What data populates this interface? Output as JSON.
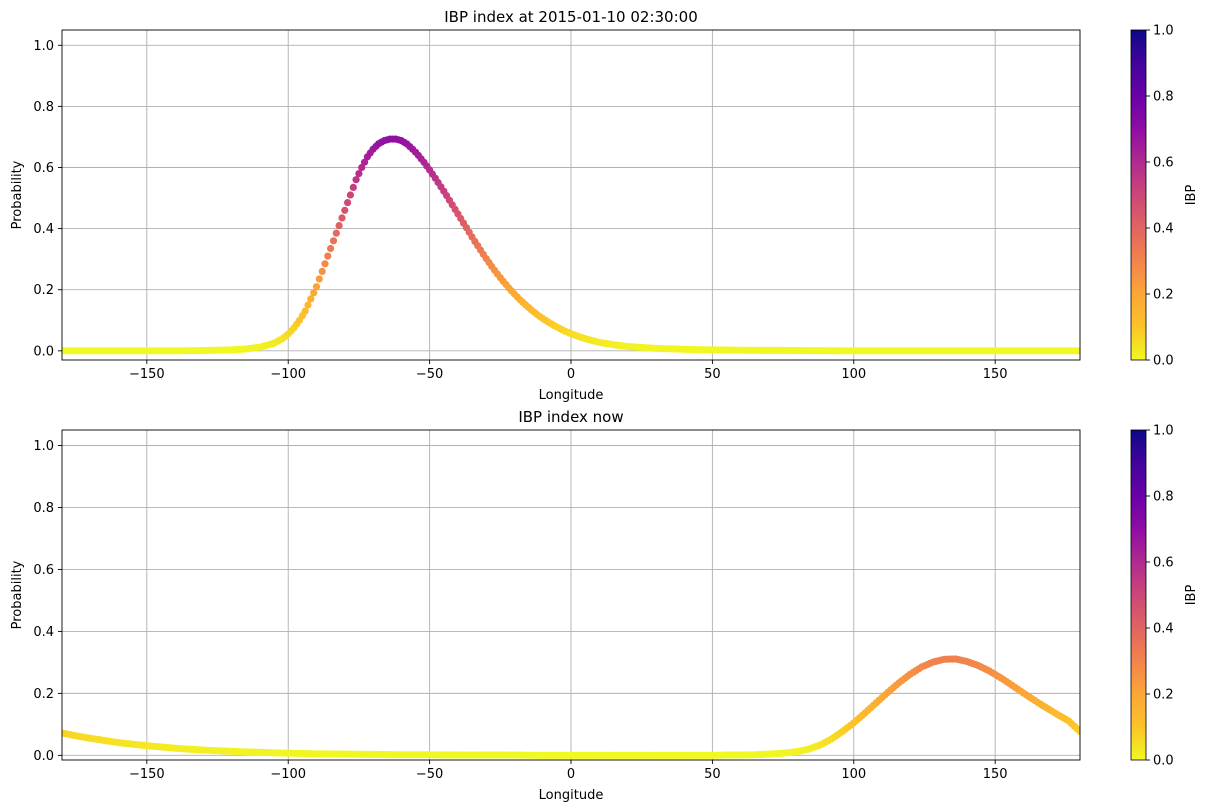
{
  "chart_data": [
    {
      "type": "scatter",
      "title": "IBP index at 2015-01-10 02:30:00",
      "xlabel": "Longitude",
      "ylabel": "Probability",
      "xlim": [
        -180,
        180
      ],
      "ylim": [
        -0.03,
        1.05
      ],
      "xticks": [
        -150,
        -100,
        -50,
        0,
        50,
        100,
        150
      ],
      "yticks": [
        0.0,
        0.2,
        0.4,
        0.6,
        0.8,
        1.0
      ],
      "xtick_labels": [
        "−150",
        "−100",
        "−50",
        "0",
        "50",
        "100",
        "150"
      ],
      "ytick_labels": [
        "0.0",
        "0.2",
        "0.4",
        "0.6",
        "0.8",
        "1.0"
      ],
      "grid": true,
      "colormap": "plasma_r",
      "colorbar": {
        "label": "IBP",
        "range": [
          0,
          1
        ],
        "ticks": [
          0.0,
          0.2,
          0.4,
          0.6,
          0.8,
          1.0
        ],
        "tick_labels": [
          "0.0",
          "0.2",
          "0.4",
          "0.6",
          "0.8",
          "1.0"
        ]
      },
      "points": [
        [
          -180,
          0.0
        ],
        [
          -170,
          0.0
        ],
        [
          -160,
          0.0
        ],
        [
          -150,
          0.0
        ],
        [
          -140,
          0.0
        ],
        [
          -130,
          0.001
        ],
        [
          -125,
          0.002
        ],
        [
          -120,
          0.003
        ],
        [
          -115,
          0.006
        ],
        [
          -110,
          0.012
        ],
        [
          -105,
          0.025
        ],
        [
          -102,
          0.04
        ],
        [
          -100,
          0.055
        ],
        [
          -98,
          0.075
        ],
        [
          -96,
          0.1
        ],
        [
          -94,
          0.13
        ],
        [
          -92,
          0.17
        ],
        [
          -90,
          0.21
        ],
        [
          -88,
          0.26
        ],
        [
          -86,
          0.31
        ],
        [
          -84,
          0.36
        ],
        [
          -82,
          0.41
        ],
        [
          -80,
          0.46
        ],
        [
          -78,
          0.51
        ],
        [
          -76,
          0.56
        ],
        [
          -74,
          0.6
        ],
        [
          -72,
          0.635
        ],
        [
          -70,
          0.66
        ],
        [
          -68,
          0.678
        ],
        [
          -66,
          0.688
        ],
        [
          -64,
          0.693
        ],
        [
          -62,
          0.693
        ],
        [
          -60,
          0.688
        ],
        [
          -58,
          0.677
        ],
        [
          -56,
          0.66
        ],
        [
          -54,
          0.64
        ],
        [
          -52,
          0.617
        ],
        [
          -50,
          0.592
        ],
        [
          -48,
          0.565
        ],
        [
          -46,
          0.537
        ],
        [
          -44,
          0.508
        ],
        [
          -42,
          0.478
        ],
        [
          -40,
          0.448
        ],
        [
          -38,
          0.418
        ],
        [
          -36,
          0.388
        ],
        [
          -34,
          0.358
        ],
        [
          -32,
          0.33
        ],
        [
          -30,
          0.302
        ],
        [
          -28,
          0.276
        ],
        [
          -26,
          0.251
        ],
        [
          -24,
          0.228
        ],
        [
          -22,
          0.206
        ],
        [
          -20,
          0.186
        ],
        [
          -18,
          0.167
        ],
        [
          -16,
          0.15
        ],
        [
          -14,
          0.134
        ],
        [
          -12,
          0.119
        ],
        [
          -10,
          0.106
        ],
        [
          -8,
          0.094
        ],
        [
          -6,
          0.083
        ],
        [
          -4,
          0.073
        ],
        [
          -2,
          0.064
        ],
        [
          0,
          0.056
        ],
        [
          3,
          0.046
        ],
        [
          6,
          0.037
        ],
        [
          10,
          0.028
        ],
        [
          15,
          0.02
        ],
        [
          20,
          0.014
        ],
        [
          30,
          0.008
        ],
        [
          40,
          0.005
        ],
        [
          50,
          0.003
        ],
        [
          60,
          0.002
        ],
        [
          80,
          0.001
        ],
        [
          100,
          0.0
        ],
        [
          120,
          0.0
        ],
        [
          140,
          0.0
        ],
        [
          160,
          0.0
        ],
        [
          180,
          0.0
        ]
      ]
    },
    {
      "type": "scatter",
      "title": "IBP index now",
      "xlabel": "Longitude",
      "ylabel": "Probability",
      "xlim": [
        -180,
        180
      ],
      "ylim": [
        -0.015,
        1.05
      ],
      "xticks": [
        -150,
        -100,
        -50,
        0,
        50,
        100,
        150
      ],
      "yticks": [
        0.0,
        0.2,
        0.4,
        0.6,
        0.8,
        1.0
      ],
      "xtick_labels": [
        "−150",
        "−100",
        "−50",
        "0",
        "50",
        "100",
        "150"
      ],
      "ytick_labels": [
        "0.0",
        "0.2",
        "0.4",
        "0.6",
        "0.8",
        "1.0"
      ],
      "grid": true,
      "colormap": "plasma_r",
      "colorbar": {
        "label": "IBP",
        "range": [
          0,
          1
        ],
        "ticks": [
          0.0,
          0.2,
          0.4,
          0.6,
          0.8,
          1.0
        ],
        "tick_labels": [
          "0.0",
          "0.2",
          "0.4",
          "0.6",
          "0.8",
          "1.0"
        ]
      },
      "points": [
        [
          -180,
          0.072
        ],
        [
          -175,
          0.063
        ],
        [
          -170,
          0.055
        ],
        [
          -165,
          0.048
        ],
        [
          -160,
          0.041
        ],
        [
          -155,
          0.036
        ],
        [
          -150,
          0.031
        ],
        [
          -145,
          0.027
        ],
        [
          -140,
          0.023
        ],
        [
          -135,
          0.02
        ],
        [
          -130,
          0.017
        ],
        [
          -125,
          0.015
        ],
        [
          -120,
          0.013
        ],
        [
          -115,
          0.011
        ],
        [
          -110,
          0.01
        ],
        [
          -105,
          0.008
        ],
        [
          -100,
          0.007
        ],
        [
          -90,
          0.005
        ],
        [
          -80,
          0.004
        ],
        [
          -70,
          0.003
        ],
        [
          -60,
          0.002
        ],
        [
          -50,
          0.002
        ],
        [
          -40,
          0.001
        ],
        [
          -30,
          0.001
        ],
        [
          -20,
          0.001
        ],
        [
          -10,
          0.0
        ],
        [
          0,
          0.0
        ],
        [
          10,
          0.0
        ],
        [
          20,
          0.0
        ],
        [
          30,
          0.0
        ],
        [
          40,
          0.0
        ],
        [
          50,
          0.0
        ],
        [
          55,
          0.001
        ],
        [
          60,
          0.001
        ],
        [
          65,
          0.002
        ],
        [
          70,
          0.004
        ],
        [
          75,
          0.007
        ],
        [
          80,
          0.012
        ],
        [
          84,
          0.02
        ],
        [
          88,
          0.033
        ],
        [
          92,
          0.052
        ],
        [
          96,
          0.077
        ],
        [
          100,
          0.105
        ],
        [
          104,
          0.137
        ],
        [
          108,
          0.17
        ],
        [
          112,
          0.203
        ],
        [
          116,
          0.234
        ],
        [
          120,
          0.262
        ],
        [
          124,
          0.285
        ],
        [
          128,
          0.301
        ],
        [
          132,
          0.31
        ],
        [
          136,
          0.311
        ],
        [
          140,
          0.303
        ],
        [
          144,
          0.29
        ],
        [
          148,
          0.272
        ],
        [
          152,
          0.25
        ],
        [
          156,
          0.226
        ],
        [
          160,
          0.201
        ],
        [
          164,
          0.177
        ],
        [
          168,
          0.154
        ],
        [
          172,
          0.132
        ],
        [
          176,
          0.111
        ],
        [
          180,
          0.077
        ]
      ]
    }
  ]
}
